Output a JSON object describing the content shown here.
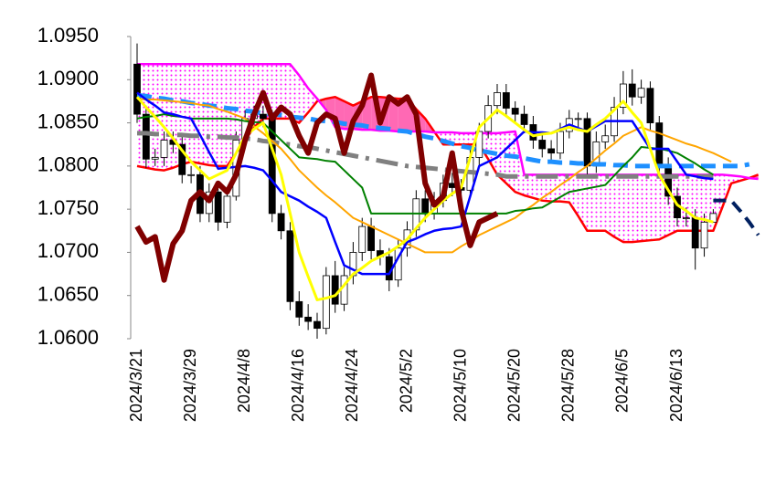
{
  "chart_data": {
    "type": "candlestick",
    "ylim": [
      1.06,
      1.095
    ],
    "yticks": [
      {
        "value": 1.06,
        "label": "1.0600"
      },
      {
        "value": 1.065,
        "label": "1.0650"
      },
      {
        "value": 1.07,
        "label": "1.0700"
      },
      {
        "value": 1.075,
        "label": "1.0750"
      },
      {
        "value": 1.08,
        "label": "1.0800"
      },
      {
        "value": 1.085,
        "label": "1.0850"
      },
      {
        "value": 1.09,
        "label": "1.0900"
      },
      {
        "value": 1.095,
        "label": "1.0950"
      }
    ],
    "categories": [
      "2024/3/21",
      null,
      null,
      null,
      null,
      null,
      "2024/3/29",
      null,
      null,
      null,
      null,
      null,
      "2024/4/8",
      null,
      null,
      null,
      null,
      null,
      "2024/4/16",
      null,
      null,
      null,
      null,
      null,
      "2024/4/24",
      null,
      null,
      null,
      null,
      null,
      "2024/5/2",
      null,
      null,
      null,
      null,
      null,
      "2024/5/10",
      null,
      null,
      null,
      null,
      null,
      "2024/5/20",
      null,
      null,
      null,
      null,
      null,
      "2024/5/28",
      null,
      null,
      null,
      null,
      null,
      "2024/6/5",
      null,
      null,
      null,
      null,
      null,
      "2024/6/13",
      null,
      null,
      null,
      null,
      null,
      null,
      null,
      null,
      null
    ],
    "cloud_colors": {
      "dotted": "#ff00ff",
      "solid": "#ff69b4"
    },
    "candles": {
      "up_color": "#ffffff",
      "down_color": "#000000",
      "open": [
        1.0918,
        1.086,
        1.0808,
        1.081,
        1.083,
        1.0825,
        1.079,
        1.079,
        1.0745,
        1.077,
        1.0735,
        1.0765,
        1.083,
        1.0855,
        1.086,
        1.0855,
        1.0745,
        1.0725,
        1.0643,
        1.0625,
        1.062,
        1.0612,
        1.0673,
        1.064,
        1.0673,
        1.07,
        1.073,
        1.0702,
        1.0695,
        1.0668,
        1.0705,
        1.0726,
        1.0762,
        1.0745,
        1.076,
        1.078,
        1.0775,
        1.0772,
        1.081,
        1.084,
        1.087,
        1.0885,
        1.0867,
        1.086,
        1.0848,
        1.083,
        1.082,
        1.0815,
        1.084,
        1.0855,
        1.0855,
        1.08,
        1.0828,
        1.0835,
        1.0868,
        1.0895,
        1.088,
        1.089,
        1.085,
        1.08,
        1.0765,
        1.074,
        1.074,
        1.0705,
        1.0735,
        null,
        null,
        null,
        null,
        null
      ],
      "high": [
        1.0942,
        1.087,
        1.082,
        1.084,
        1.084,
        1.0835,
        1.08,
        1.08,
        1.078,
        1.078,
        1.0775,
        1.084,
        1.0865,
        1.087,
        1.087,
        1.0865,
        1.0755,
        1.0735,
        1.0655,
        1.064,
        1.063,
        1.0683,
        1.069,
        1.0683,
        1.0712,
        1.074,
        1.074,
        1.0715,
        1.0705,
        1.0715,
        1.0736,
        1.0772,
        1.0772,
        1.077,
        1.079,
        1.0792,
        1.0785,
        1.082,
        1.085,
        1.0882,
        1.0895,
        1.0895,
        1.0875,
        1.087,
        1.0858,
        1.084,
        1.083,
        1.085,
        1.0865,
        1.0862,
        1.0862,
        1.084,
        1.0848,
        1.088,
        1.091,
        1.0912,
        1.09,
        1.0898,
        1.0858,
        1.081,
        1.0775,
        1.0752,
        1.075,
        1.0745,
        1.075,
        null,
        null,
        null,
        null,
        null
      ],
      "low": [
        1.085,
        1.0798,
        1.08,
        1.08,
        1.0815,
        1.078,
        1.078,
        1.0735,
        1.0735,
        1.0725,
        1.0728,
        1.076,
        1.082,
        1.0845,
        1.0845,
        1.0735,
        1.0715,
        1.0633,
        1.0615,
        1.061,
        1.06,
        1.0605,
        1.063,
        1.0632,
        1.0663,
        1.069,
        1.0692,
        1.0685,
        1.0655,
        1.066,
        1.0695,
        1.0718,
        1.0735,
        1.0738,
        1.0752,
        1.0765,
        1.0762,
        1.0765,
        1.08,
        1.0832,
        1.086,
        1.0857,
        1.085,
        1.0838,
        1.082,
        1.081,
        1.0805,
        1.0808,
        1.0832,
        1.0845,
        1.079,
        1.0792,
        1.082,
        1.0828,
        1.086,
        1.087,
        1.0872,
        1.0842,
        1.079,
        1.0755,
        1.073,
        1.073,
        1.068,
        1.0695,
        1.0735,
        null,
        null,
        null,
        null,
        null
      ],
      "close": [
        1.086,
        1.0808,
        1.081,
        1.083,
        1.0825,
        1.079,
        1.079,
        1.0745,
        1.077,
        1.0735,
        1.0765,
        1.083,
        1.0855,
        1.086,
        1.0855,
        1.0745,
        1.0725,
        1.0643,
        1.0625,
        1.062,
        1.0612,
        1.0673,
        1.064,
        1.0673,
        1.07,
        1.073,
        1.0702,
        1.0695,
        1.0668,
        1.0705,
        1.0726,
        1.0762,
        1.0745,
        1.076,
        1.078,
        1.0775,
        1.0772,
        1.081,
        1.084,
        1.087,
        1.0885,
        1.0867,
        1.086,
        1.0848,
        1.083,
        1.082,
        1.0815,
        1.084,
        1.0855,
        1.0855,
        1.08,
        1.0828,
        1.0835,
        1.0868,
        1.0895,
        1.088,
        1.089,
        1.085,
        1.08,
        1.0765,
        1.074,
        1.074,
        1.0705,
        1.0735,
        1.0745,
        null,
        null,
        null,
        null,
        null
      ]
    },
    "series": [
      {
        "color": "#ff0000",
        "width": 2.5,
        "values": [
          1.08,
          1.0798,
          1.0796,
          1.0795,
          1.0798,
          1.0802,
          1.0805,
          1.0803,
          1.0801,
          1.08,
          1.08,
          1.0815,
          1.083,
          1.0845,
          1.0855,
          1.0855,
          1.0855,
          1.0855,
          1.085,
          1.0862,
          1.0875,
          1.0878,
          1.088,
          1.0875,
          1.087,
          1.0875,
          1.088,
          1.088,
          1.0879,
          1.0878,
          1.0878,
          1.0866,
          1.0855,
          1.084,
          1.0825,
          1.0825,
          1.0825,
          1.0825,
          1.0825,
          1.0808,
          1.079,
          1.078,
          1.077,
          1.0766,
          1.0763,
          1.076,
          1.0759,
          1.0759,
          1.0758,
          1.0742,
          1.0725,
          1.0725,
          1.0725,
          1.0718,
          1.0712,
          1.0712,
          1.0713,
          1.0714,
          1.0715,
          1.072,
          1.0725,
          1.0725,
          1.0725,
          1.0725,
          1.0725,
          1.0752,
          1.078,
          1.0783,
          1.0786,
          1.079
        ]
      },
      {
        "color": "#ff00ff",
        "width": 2.5,
        "values": [
          1.0918,
          1.0918,
          1.0918,
          1.0918,
          1.0918,
          1.0918,
          1.0918,
          1.0918,
          1.0918,
          1.0918,
          1.0918,
          1.0918,
          1.0918,
          1.0918,
          1.0918,
          1.0918,
          1.0918,
          1.0918,
          1.0905,
          1.089,
          1.0878,
          1.0865,
          1.0845,
          1.0843,
          1.0843,
          1.0842,
          1.0842,
          1.0841,
          1.0841,
          1.084,
          1.084,
          1.084,
          1.084,
          1.0839,
          1.0839,
          1.0839,
          1.0838,
          1.0838,
          1.0838,
          1.0838,
          1.0838,
          1.0839,
          1.084,
          1.079,
          1.079,
          1.079,
          1.079,
          1.079,
          1.079,
          1.079,
          1.079,
          1.079,
          1.079,
          1.079,
          1.079,
          1.079,
          1.079,
          1.079,
          1.079,
          1.079,
          1.079,
          1.079,
          1.079,
          1.079,
          1.079,
          1.079,
          1.0789,
          1.0788,
          1.0786,
          1.0785
        ]
      },
      {
        "color": "#1e90ff",
        "width": 5,
        "dash": "16,8",
        "values": [
          1.0882,
          1.0881,
          1.0879,
          1.0878,
          1.0876,
          1.0875,
          1.0873,
          1.0872,
          1.087,
          1.0869,
          1.0867,
          1.0866,
          1.0864,
          1.0863,
          1.0861,
          1.086,
          1.0859,
          1.0857,
          1.0856,
          1.0855,
          1.0853,
          1.0852,
          1.0851,
          1.0849,
          1.0848,
          1.0847,
          1.0845,
          1.0844,
          1.0843,
          1.0841,
          1.084,
          1.0837,
          1.0834,
          1.0832,
          1.0829,
          1.0826,
          1.0823,
          1.0821,
          1.0818,
          1.0816,
          1.0814,
          1.0812,
          1.0811,
          1.0809,
          1.0807,
          1.0805,
          1.0805,
          1.0804,
          1.0804,
          1.0803,
          1.0803,
          1.0802,
          1.0802,
          1.0801,
          1.0801,
          1.08,
          1.08,
          1.08,
          1.08,
          1.08,
          1.08,
          1.08,
          1.08,
          1.08,
          1.08,
          1.08,
          1.08,
          1.08,
          1.0802,
          null
        ]
      },
      {
        "color": "#808080",
        "width": 5,
        "dash": "24,8,4,8",
        "values": [
          1.0838,
          1.0838,
          1.0837,
          1.0837,
          1.0836,
          1.0836,
          1.0835,
          1.0835,
          1.0834,
          1.0834,
          1.0833,
          1.0833,
          1.0832,
          1.0831,
          1.0829,
          1.0828,
          1.0826,
          1.0825,
          1.0823,
          1.0822,
          1.082,
          1.0818,
          1.0816,
          1.0814,
          1.0812,
          1.081,
          1.0808,
          1.0806,
          1.0804,
          1.0802,
          1.08,
          1.0799,
          1.0798,
          1.0797,
          1.0796,
          1.0795,
          1.0794,
          1.0793,
          1.0792,
          1.0791,
          1.079,
          1.0788,
          1.0788,
          1.0788,
          1.0788,
          1.0788,
          1.0788,
          1.0788,
          1.0788,
          1.0788,
          1.0788,
          1.0788,
          1.0788,
          1.0788,
          1.0788,
          1.0788,
          1.0788,
          1.0788,
          1.0788,
          1.0788,
          1.0788,
          1.0788,
          1.0788,
          1.0788,
          1.0788,
          null,
          null,
          null,
          null,
          null
        ]
      },
      {
        "color": "#ffa500",
        "width": 2,
        "values": [
          1.0878,
          1.0877,
          1.0877,
          1.0876,
          1.0875,
          1.0874,
          1.0873,
          1.0871,
          1.087,
          1.0866,
          1.0863,
          1.0859,
          1.0855,
          1.0846,
          1.0838,
          1.0829,
          1.082,
          1.0808,
          1.0795,
          1.0785,
          1.0775,
          1.0766,
          1.0758,
          1.0749,
          1.074,
          1.0735,
          1.073,
          1.0725,
          1.072,
          1.0715,
          1.071,
          1.0705,
          1.07,
          1.07,
          1.07,
          1.07,
          1.0707,
          1.0713,
          1.072,
          1.0725,
          1.073,
          1.0735,
          1.074,
          1.0748,
          1.0755,
          1.0763,
          1.077,
          1.0778,
          1.0785,
          1.0793,
          1.08,
          1.0809,
          1.0818,
          1.0826,
          1.0835,
          1.084,
          1.0845,
          1.0841,
          1.0838,
          1.0834,
          1.083,
          1.0826,
          1.0823,
          1.0819,
          1.0815,
          1.081,
          1.0805,
          null,
          null,
          null
        ]
      },
      {
        "color": "#008000",
        "width": 2,
        "values": [
          1.0855,
          1.0857,
          1.0858,
          1.086,
          1.0858,
          1.0857,
          1.0855,
          1.0855,
          1.0855,
          1.0855,
          1.0855,
          1.0854,
          1.0852,
          1.0851,
          1.085,
          1.084,
          1.083,
          1.082,
          1.081,
          1.0809,
          1.0808,
          1.0806,
          1.0805,
          1.0795,
          1.0785,
          1.0775,
          1.0745,
          1.0745,
          1.0745,
          1.0745,
          1.0745,
          1.0745,
          1.0745,
          1.0745,
          1.0745,
          1.0745,
          1.0745,
          1.0745,
          1.0745,
          1.0745,
          1.0745,
          1.0745,
          1.0748,
          1.0749,
          1.0751,
          1.0752,
          1.0758,
          1.0764,
          1.077,
          1.0772,
          1.0774,
          1.0776,
          1.0778,
          1.0789,
          1.08,
          1.081,
          1.0822,
          1.0821,
          1.082,
          1.0818,
          1.0815,
          1.0809,
          1.0803,
          1.0796,
          1.079,
          null,
          null,
          null,
          null,
          null
        ]
      },
      {
        "color": "#0000ff",
        "width": 2.5,
        "values": [
          1.0885,
          1.0877,
          1.087,
          1.0862,
          1.086,
          1.0857,
          1.0855,
          1.0836,
          1.0816,
          1.0797,
          1.0798,
          1.0799,
          1.08,
          1.0798,
          1.0795,
          1.0783,
          1.077,
          1.0765,
          1.076,
          1.0753,
          1.0747,
          1.074,
          1.0712,
          1.0685,
          1.068,
          1.0675,
          1.0675,
          1.0675,
          1.0675,
          1.0694,
          1.0712,
          1.0716,
          1.0721,
          1.0725,
          1.0727,
          1.0728,
          1.073,
          1.0765,
          1.08,
          1.0805,
          1.081,
          1.082,
          1.083,
          1.084,
          1.0839,
          1.0839,
          1.0838,
          1.0843,
          1.0848,
          1.0844,
          1.084,
          1.0846,
          1.0852,
          1.0852,
          1.0852,
          1.0852,
          1.0836,
          1.082,
          1.082,
          1.082,
          1.0805,
          1.079,
          1.0788,
          1.0786,
          1.0785,
          null,
          null,
          null,
          null,
          null
        ]
      },
      {
        "color": "#ffff00",
        "width": 3,
        "values": [
          1.088,
          1.0868,
          1.0857,
          1.0845,
          1.0832,
          1.0818,
          1.0805,
          1.0795,
          1.0785,
          1.079,
          1.0795,
          1.0815,
          1.0835,
          1.0843,
          1.085,
          1.082,
          1.079,
          1.0745,
          1.07,
          1.0672,
          1.0645,
          1.0647,
          1.065,
          1.0662,
          1.0675,
          1.0682,
          1.069,
          1.0695,
          1.07,
          1.0707,
          1.0715,
          1.0728,
          1.074,
          1.075,
          1.076,
          1.0768,
          1.0775,
          1.081,
          1.0845,
          1.0855,
          1.0865,
          1.0858,
          1.085,
          1.0842,
          1.0835,
          1.0837,
          1.0838,
          1.0842,
          1.0845,
          1.0842,
          1.084,
          1.0848,
          1.0855,
          1.0865,
          1.0875,
          1.0862,
          1.085,
          1.082,
          1.079,
          1.0772,
          1.0755,
          1.0748,
          1.074,
          1.0738,
          1.0735,
          null,
          null,
          null,
          null,
          null
        ]
      },
      {
        "color": "#800000",
        "width": 6,
        "values": [
          1.073,
          1.0712,
          1.0718,
          1.0668,
          1.071,
          1.0725,
          1.076,
          1.077,
          1.076,
          1.078,
          1.077,
          1.079,
          1.083,
          1.086,
          1.0885,
          1.0855,
          1.0868,
          1.086,
          1.0835,
          1.0815,
          1.085,
          1.086,
          1.0855,
          1.0815,
          1.0852,
          1.087,
          1.0905,
          1.085,
          1.088,
          1.0872,
          1.088,
          1.086,
          1.078,
          1.0755,
          1.0765,
          1.0815,
          1.075,
          1.0708,
          1.0735,
          1.074,
          1.0745,
          null,
          null,
          null,
          null,
          null,
          null,
          null,
          null,
          null,
          null,
          null,
          null,
          null,
          null,
          null,
          null,
          null,
          null,
          null,
          null,
          null,
          null,
          null,
          null,
          null,
          null,
          null,
          null,
          null
        ]
      },
      {
        "color": "#002060",
        "width": 4,
        "dash": "14,8",
        "values": [
          null,
          null,
          null,
          null,
          null,
          null,
          null,
          null,
          null,
          null,
          null,
          null,
          null,
          null,
          null,
          null,
          null,
          null,
          null,
          null,
          null,
          null,
          null,
          null,
          null,
          null,
          null,
          null,
          null,
          null,
          null,
          null,
          null,
          null,
          null,
          null,
          null,
          null,
          null,
          null,
          null,
          null,
          null,
          null,
          null,
          null,
          null,
          null,
          null,
          null,
          null,
          null,
          null,
          null,
          null,
          null,
          null,
          null,
          null,
          null,
          null,
          null,
          null,
          null,
          1.076,
          1.076,
          1.076,
          1.0748,
          1.0735,
          1.072
        ]
      }
    ]
  }
}
